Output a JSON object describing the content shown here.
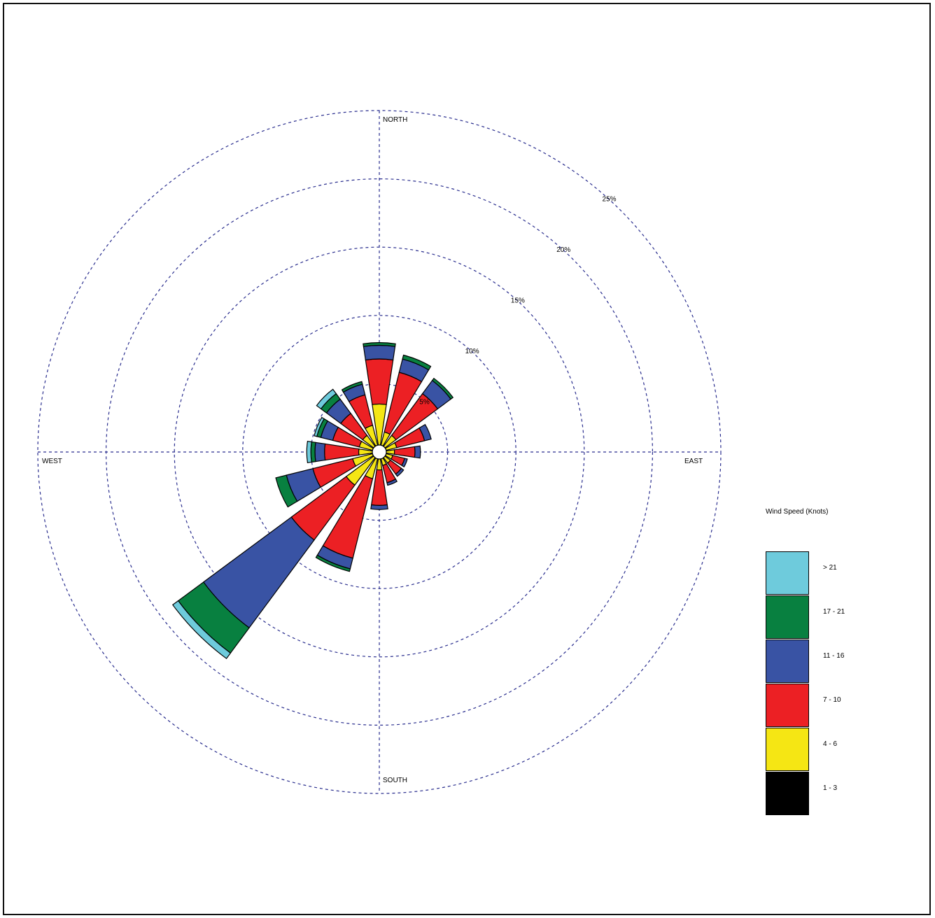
{
  "chart_data": {
    "type": "wind-rose",
    "title": "",
    "legend_title": "Wind Speed (Knots)",
    "legend_placement": "right",
    "direction_labels": {
      "north": "NORTH",
      "east": "EAST",
      "south": "SOUTH",
      "west": "WEST"
    },
    "ring_labels": [
      "5%",
      "10%",
      "15%",
      "20%",
      "25%"
    ],
    "ring_values": [
      5,
      10,
      15,
      20,
      25
    ],
    "radial_max": 25,
    "bins": [
      {
        "label": "1 - 3",
        "color": "#000000"
      },
      {
        "label": "4 - 6",
        "color": "#f5e614"
      },
      {
        "label": "7 - 10",
        "color": "#ec2024"
      },
      {
        "label": "11 - 16",
        "color": "#3953a4"
      },
      {
        "label": "17 - 21",
        "color": "#088040"
      },
      {
        "label": "> 21",
        "color": "#6ecbdc"
      }
    ],
    "directions": [
      {
        "direction": 0,
        "values": [
          0.0,
          3.0,
          3.3,
          1.0,
          0.2,
          0.0
        ]
      },
      {
        "direction": 22.5,
        "values": [
          0.0,
          1.0,
          4.5,
          1.0,
          0.3,
          0.0
        ]
      },
      {
        "direction": 45,
        "values": [
          0.0,
          1.0,
          3.8,
          1.2,
          0.2,
          0.0
        ]
      },
      {
        "direction": 67.5,
        "values": [
          0.0,
          0.8,
          2.1,
          0.5,
          0.0,
          0.0
        ]
      },
      {
        "direction": 90,
        "values": [
          0.0,
          0.6,
          1.5,
          0.4,
          0.0,
          0.0
        ]
      },
      {
        "direction": 112.5,
        "values": [
          0.0,
          0.5,
          0.9,
          0.2,
          0.0,
          0.0
        ]
      },
      {
        "direction": 135,
        "values": [
          0.0,
          0.5,
          1.0,
          0.2,
          0.0,
          0.0
        ]
      },
      {
        "direction": 157.5,
        "values": [
          0.0,
          0.5,
          1.3,
          0.2,
          0.0,
          0.0
        ]
      },
      {
        "direction": 180,
        "values": [
          0.0,
          0.8,
          2.6,
          0.3,
          0.0,
          0.0
        ]
      },
      {
        "direction": 202.5,
        "values": [
          0.0,
          1.5,
          6.0,
          0.8,
          0.2,
          0.0
        ]
      },
      {
        "direction": 225,
        "values": [
          0.0,
          2.5,
          5.0,
          8.0,
          2.3,
          0.5
        ]
      },
      {
        "direction": 247.5,
        "values": [
          0.0,
          1.5,
          3.0,
          2.0,
          0.8,
          0.0
        ]
      },
      {
        "direction": 270,
        "values": [
          0.0,
          1.0,
          2.5,
          0.7,
          0.3,
          0.3
        ]
      },
      {
        "direction": 292.5,
        "values": [
          0.0,
          1.0,
          2.0,
          0.9,
          0.3,
          0.2
        ]
      },
      {
        "direction": 315,
        "values": [
          0.0,
          1.0,
          2.0,
          1.3,
          0.5,
          0.4
        ]
      },
      {
        "direction": 337.5,
        "values": [
          0.0,
          1.5,
          2.3,
          0.8,
          0.2,
          0.0
        ]
      }
    ],
    "grid": true
  }
}
